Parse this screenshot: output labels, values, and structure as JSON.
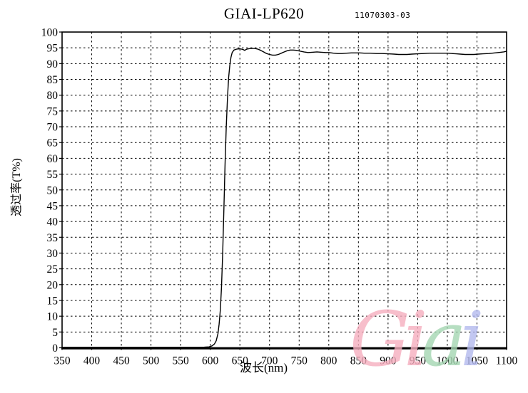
{
  "header": {
    "title": "GIAI-LP620",
    "code": "11070303-03"
  },
  "watermark": {
    "text": "Giai",
    "letters": [
      {
        "char": "G",
        "color": "#f6aebf"
      },
      {
        "char": "i",
        "color": "#f6aebf"
      },
      {
        "char": "a",
        "color": "#a5d6b2"
      },
      {
        "char": "i",
        "color": "#b3baee"
      }
    ]
  },
  "chart_data": {
    "type": "line",
    "title": "GIAI-LP620",
    "subtitle": "11070303-03",
    "xlabel": "波长(nm)",
    "ylabel": "透过率(T%)",
    "xlim": [
      350,
      1100
    ],
    "ylim": [
      0,
      100
    ],
    "x_ticks": [
      350,
      400,
      450,
      500,
      550,
      600,
      650,
      700,
      750,
      800,
      850,
      900,
      950,
      1000,
      1050,
      1100
    ],
    "y_ticks": [
      0,
      5,
      10,
      15,
      20,
      25,
      30,
      35,
      40,
      45,
      50,
      55,
      60,
      65,
      70,
      75,
      80,
      85,
      90,
      95,
      100
    ],
    "grid": "dashed",
    "legend": "none",
    "line_color": "#000000",
    "series": [
      {
        "name": "transmission",
        "points": [
          [
            350,
            0.15
          ],
          [
            400,
            0.15
          ],
          [
            450,
            0.15
          ],
          [
            500,
            0.15
          ],
          [
            550,
            0.15
          ],
          [
            580,
            0.15
          ],
          [
            590,
            0.2
          ],
          [
            598,
            0.3
          ],
          [
            603,
            0.6
          ],
          [
            607,
            1.2
          ],
          [
            610,
            2.2
          ],
          [
            613,
            4.5
          ],
          [
            615,
            7.5
          ],
          [
            617,
            12
          ],
          [
            619,
            19
          ],
          [
            621,
            30
          ],
          [
            623,
            44
          ],
          [
            625,
            58
          ],
          [
            627,
            70
          ],
          [
            629,
            79
          ],
          [
            631,
            85.5
          ],
          [
            633,
            89.5
          ],
          [
            635,
            92
          ],
          [
            637,
            93.5
          ],
          [
            640,
            94.3
          ],
          [
            645,
            94.6
          ],
          [
            650,
            94.7
          ],
          [
            655,
            94.5
          ],
          [
            658,
            94.2
          ],
          [
            662,
            94.6
          ],
          [
            668,
            94.8
          ],
          [
            675,
            94.8
          ],
          [
            680,
            94.6
          ],
          [
            685,
            94.2
          ],
          [
            690,
            93.7
          ],
          [
            695,
            93.2
          ],
          [
            700,
            92.9
          ],
          [
            705,
            92.7
          ],
          [
            710,
            92.7
          ],
          [
            715,
            92.9
          ],
          [
            720,
            93.3
          ],
          [
            725,
            93.7
          ],
          [
            730,
            94.1
          ],
          [
            735,
            94.3
          ],
          [
            740,
            94.3
          ],
          [
            745,
            94.2
          ],
          [
            750,
            94.0
          ],
          [
            758,
            93.7
          ],
          [
            765,
            93.5
          ],
          [
            772,
            93.6
          ],
          [
            780,
            93.7
          ],
          [
            788,
            93.6
          ],
          [
            795,
            93.5
          ],
          [
            800,
            93.5
          ],
          [
            808,
            93.3
          ],
          [
            815,
            93.2
          ],
          [
            822,
            93.2
          ],
          [
            830,
            93.3
          ],
          [
            838,
            93.4
          ],
          [
            845,
            93.4
          ],
          [
            852,
            93.4
          ],
          [
            860,
            93.3
          ],
          [
            870,
            93.3
          ],
          [
            880,
            93.2
          ],
          [
            890,
            93.2
          ],
          [
            900,
            93.1
          ],
          [
            910,
            93.0
          ],
          [
            918,
            92.9
          ],
          [
            925,
            92.9
          ],
          [
            932,
            92.9
          ],
          [
            940,
            93.0
          ],
          [
            950,
            93.1
          ],
          [
            960,
            93.2
          ],
          [
            970,
            93.3
          ],
          [
            980,
            93.3
          ],
          [
            990,
            93.3
          ],
          [
            1000,
            93.3
          ],
          [
            1008,
            93.2
          ],
          [
            1015,
            93.1
          ],
          [
            1022,
            93.0
          ],
          [
            1030,
            92.9
          ],
          [
            1038,
            92.9
          ],
          [
            1045,
            92.9
          ],
          [
            1052,
            93.0
          ],
          [
            1060,
            93.1
          ],
          [
            1070,
            93.2
          ],
          [
            1080,
            93.4
          ],
          [
            1090,
            93.6
          ],
          [
            1095,
            93.7
          ],
          [
            1100,
            93.9
          ]
        ]
      }
    ]
  }
}
